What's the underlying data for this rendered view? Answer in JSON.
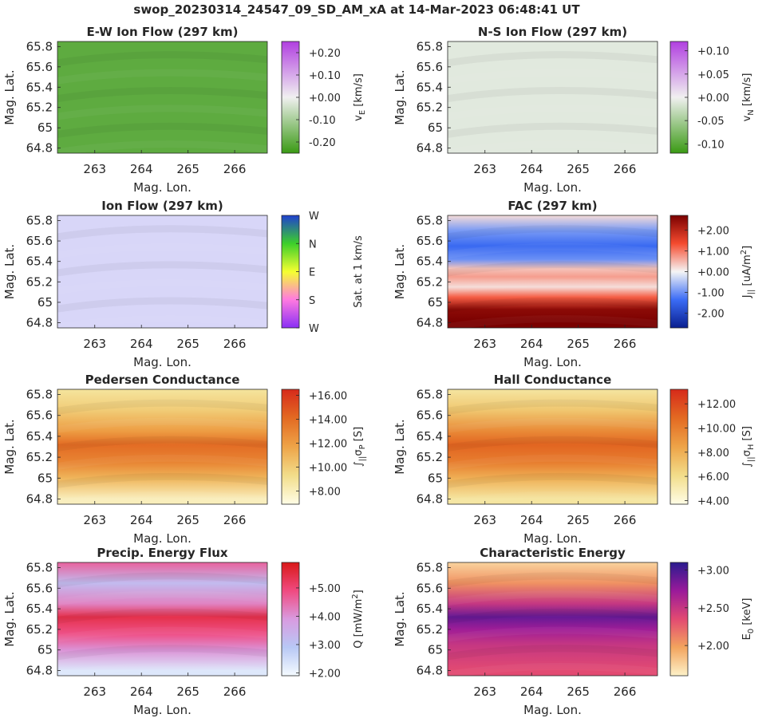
{
  "figure": {
    "title": "swop_20230314_24547_09_SD_AM_xA at 14-Mar-2023 06:48:41 UT"
  },
  "chart_data": [
    {
      "type": "heatmap",
      "id": "ew",
      "title": "E-W Ion Flow (297 km)",
      "xlabel": "Mag. Lon.",
      "ylabel": "Mag. Lat.",
      "xticks": [
        "263",
        "264",
        "265",
        "266"
      ],
      "yticks": [
        "65.8",
        "65.6",
        "65.4",
        "65.2",
        "65",
        "64.8"
      ],
      "xlim": [
        262.2,
        266.7
      ],
      "ylim": [
        64.75,
        65.85
      ],
      "colorbar": {
        "label_main": "v",
        "label_sub": "E",
        "label_tail": " [km/s]",
        "ticks": [
          "+0.20",
          "+0.10",
          "+0.00",
          "-0.10",
          "-0.20"
        ],
        "tick_values": [
          0.2,
          0.1,
          0.0,
          -0.1,
          -0.2
        ],
        "range": [
          -0.25,
          0.25
        ],
        "colors": [
          "#3a9a14",
          "#f0f0f0",
          "#b13fe0"
        ]
      },
      "colormap_values": {
        "dominant_value": -0.2
      }
    },
    {
      "type": "heatmap",
      "id": "ns",
      "title": "N-S Ion Flow (297 km)",
      "xlabel": "Mag. Lon.",
      "ylabel": "Mag. Lat.",
      "xticks": [
        "263",
        "264",
        "265",
        "266"
      ],
      "yticks": [
        "65.8",
        "65.6",
        "65.4",
        "65.2",
        "65",
        "64.8"
      ],
      "xlim": [
        262.2,
        266.7
      ],
      "ylim": [
        64.75,
        65.85
      ],
      "colorbar": {
        "label_main": "v",
        "label_sub": "N",
        "label_tail": " [km/s]",
        "ticks": [
          "+0.10",
          "+0.05",
          "+0.00",
          "-0.05",
          "-0.10"
        ],
        "tick_values": [
          0.1,
          0.05,
          0.0,
          -0.05,
          -0.1
        ],
        "range": [
          -0.12,
          0.12
        ],
        "colors": [
          "#3a9a14",
          "#f0f0f0",
          "#b13fe0"
        ]
      },
      "colormap_values": {
        "dominant_value": -0.01
      }
    },
    {
      "type": "heatmap",
      "id": "ion",
      "title": "Ion Flow (297 km)",
      "xlabel": "Mag. Lon.",
      "ylabel": "Mag. Lat.",
      "xticks": [
        "263",
        "264",
        "265",
        "266"
      ],
      "yticks": [
        "65.8",
        "65.6",
        "65.4",
        "65.2",
        "65",
        "64.8"
      ],
      "xlim": [
        262.2,
        266.7
      ],
      "ylim": [
        64.75,
        65.85
      ],
      "colorbar": {
        "label_main": "Sat. at 1 km/s",
        "ticks": [
          "W",
          "N",
          "E",
          "S",
          "W"
        ],
        "tick_values": [
          1.0,
          0.75,
          0.5,
          0.25,
          0.0
        ],
        "range": [
          0,
          1
        ],
        "colors": [
          "#8a2ff5",
          "#ff7ae0",
          "#f5ff30",
          "#3ccf2a",
          "#2040d0"
        ]
      },
      "colormap_values": {
        "dominant_color": "#d8d6f8"
      }
    },
    {
      "type": "heatmap",
      "id": "fac",
      "title": "FAC (297 km)",
      "xlabel": "Mag. Lon.",
      "ylabel": "Mag. Lat.",
      "xticks": [
        "263",
        "264",
        "265",
        "266"
      ],
      "yticks": [
        "65.8",
        "65.6",
        "65.4",
        "65.2",
        "65",
        "64.8"
      ],
      "xlim": [
        262.2,
        266.7
      ],
      "ylim": [
        64.75,
        65.85
      ],
      "colorbar": {
        "label_main": "J",
        "label_sub": "||",
        "label_tail": " [uA/m",
        "label_sup": "2",
        "label_end": "]",
        "ticks": [
          "+2.00",
          "+1.00",
          "+0.00",
          "-1.00",
          "-2.00"
        ],
        "tick_values": [
          2,
          1,
          0,
          -1,
          -2
        ],
        "range": [
          -2.7,
          2.7
        ],
        "colors": [
          "#0a1f8f",
          "#3b6cf5",
          "#f5f5f5",
          "#f54b2f",
          "#7a0000"
        ]
      },
      "bands_by_latitude": [
        {
          "lat": 65.85,
          "value": 0.2
        },
        {
          "lat": 65.7,
          "value": -0.9
        },
        {
          "lat": 65.55,
          "value": -1.4
        },
        {
          "lat": 65.42,
          "value": -1.0
        },
        {
          "lat": 65.33,
          "value": 0.4
        },
        {
          "lat": 65.25,
          "value": 0.7
        },
        {
          "lat": 65.15,
          "value": 0.2
        },
        {
          "lat": 65.05,
          "value": 1.2
        },
        {
          "lat": 64.93,
          "value": 2.5
        },
        {
          "lat": 64.8,
          "value": 2.7
        }
      ]
    },
    {
      "type": "heatmap",
      "id": "ped",
      "title": "Pedersen Conductance",
      "xlabel": "Mag. Lon.",
      "ylabel": "Mag. Lat.",
      "xticks": [
        "263",
        "264",
        "265",
        "266"
      ],
      "yticks": [
        "65.8",
        "65.6",
        "65.4",
        "65.2",
        "65",
        "64.8"
      ],
      "xlim": [
        262.2,
        266.7
      ],
      "ylim": [
        64.75,
        65.85
      ],
      "colorbar": {
        "label_main": "∫",
        "label_sub": "||",
        "label_tail": "σ",
        "label_sub2": "P",
        "label_end": " [S]",
        "ticks": [
          "+16.00",
          "+14.00",
          "+12.00",
          "+10.00",
          "+8.00"
        ],
        "tick_values": [
          16,
          14,
          12,
          10,
          8
        ],
        "range": [
          6.9,
          16.5
        ],
        "colors": [
          "#fffde6",
          "#f2dd8a",
          "#eea448",
          "#e36a22",
          "#d62a1a"
        ]
      },
      "profile_by_latitude": [
        {
          "lat": 65.85,
          "value": 8.8
        },
        {
          "lat": 65.65,
          "value": 10.0
        },
        {
          "lat": 65.45,
          "value": 12.0
        },
        {
          "lat": 65.32,
          "value": 14.0
        },
        {
          "lat": 65.15,
          "value": 13.0
        },
        {
          "lat": 65.0,
          "value": 11.0
        },
        {
          "lat": 64.8,
          "value": 8.0
        }
      ]
    },
    {
      "type": "heatmap",
      "id": "hall",
      "title": "Hall Conductance",
      "xlabel": "Mag. Lon.",
      "ylabel": "Mag. Lat.",
      "xticks": [
        "263",
        "264",
        "265",
        "266"
      ],
      "yticks": [
        "65.8",
        "65.6",
        "65.4",
        "65.2",
        "65",
        "64.8"
      ],
      "xlim": [
        262.2,
        266.7
      ],
      "ylim": [
        64.75,
        65.85
      ],
      "colorbar": {
        "label_main": "∫",
        "label_sub": "||",
        "label_tail": "σ",
        "label_sub2": "H",
        "label_end": " [S]",
        "ticks": [
          "+12.00",
          "+10.00",
          "+8.00",
          "+6.00",
          "+4.00"
        ],
        "tick_values": [
          12,
          10,
          8,
          6,
          4
        ],
        "range": [
          3.7,
          13.2
        ],
        "colors": [
          "#fffde6",
          "#f2dd8a",
          "#eea448",
          "#e36a22",
          "#d62a1a"
        ]
      },
      "profile_by_latitude": [
        {
          "lat": 65.85,
          "value": 5.5
        },
        {
          "lat": 65.65,
          "value": 7.0
        },
        {
          "lat": 65.45,
          "value": 9.5
        },
        {
          "lat": 65.32,
          "value": 11.0
        },
        {
          "lat": 65.15,
          "value": 10.0
        },
        {
          "lat": 65.0,
          "value": 8.0
        },
        {
          "lat": 64.8,
          "value": 5.5
        }
      ]
    },
    {
      "type": "heatmap",
      "id": "precip",
      "title": "Precip. Energy Flux",
      "xlabel": "Mag. Lon.",
      "ylabel": "Mag. Lat.",
      "xticks": [
        "263",
        "264",
        "265",
        "266"
      ],
      "yticks": [
        "65.8",
        "65.6",
        "65.4",
        "65.2",
        "65",
        "64.8"
      ],
      "xlim": [
        262.2,
        266.7
      ],
      "ylim": [
        64.75,
        65.85
      ],
      "colorbar": {
        "label_main": "Q [mW/m",
        "label_sup": "2",
        "label_end": "]",
        "ticks": [
          "+5.00",
          "+4.00",
          "+3.00",
          "+2.00"
        ],
        "tick_values": [
          5,
          4,
          3,
          2
        ],
        "range": [
          1.9,
          5.9
        ],
        "colors": [
          "#f5fbff",
          "#b8c8f5",
          "#d99be0",
          "#f04a80",
          "#d91818"
        ]
      },
      "profile_by_latitude": [
        {
          "lat": 65.85,
          "value": 4.6
        },
        {
          "lat": 65.65,
          "value": 3.2
        },
        {
          "lat": 65.45,
          "value": 4.2
        },
        {
          "lat": 65.32,
          "value": 5.4
        },
        {
          "lat": 65.15,
          "value": 4.8
        },
        {
          "lat": 65.0,
          "value": 4.0
        },
        {
          "lat": 64.8,
          "value": 2.3
        }
      ]
    },
    {
      "type": "heatmap",
      "id": "char",
      "title": "Characteristic Energy",
      "xlabel": "Mag. Lon.",
      "ylabel": "Mag. Lat.",
      "xticks": [
        "263",
        "264",
        "265",
        "266"
      ],
      "yticks": [
        "65.8",
        "65.6",
        "65.4",
        "65.2",
        "65",
        "64.8"
      ],
      "xlim": [
        262.2,
        266.7
      ],
      "ylim": [
        64.75,
        65.85
      ],
      "colorbar": {
        "label_main": "E",
        "label_sub": "0",
        "label_tail": " [keV]",
        "ticks": [
          "+3.00",
          "+2.50",
          "+2.00"
        ],
        "tick_values": [
          3.0,
          2.5,
          2.0
        ],
        "range": [
          1.6,
          3.1
        ],
        "colors": [
          "#fdf2c9",
          "#f3a45e",
          "#e24a72",
          "#9a1a9a",
          "#2a1b8f"
        ]
      },
      "profile_by_latitude": [
        {
          "lat": 65.85,
          "value": 1.75
        },
        {
          "lat": 65.65,
          "value": 2.05
        },
        {
          "lat": 65.45,
          "value": 2.5
        },
        {
          "lat": 65.32,
          "value": 2.9
        },
        {
          "lat": 65.2,
          "value": 2.7
        },
        {
          "lat": 65.05,
          "value": 2.5
        },
        {
          "lat": 64.8,
          "value": 2.35
        }
      ]
    }
  ]
}
